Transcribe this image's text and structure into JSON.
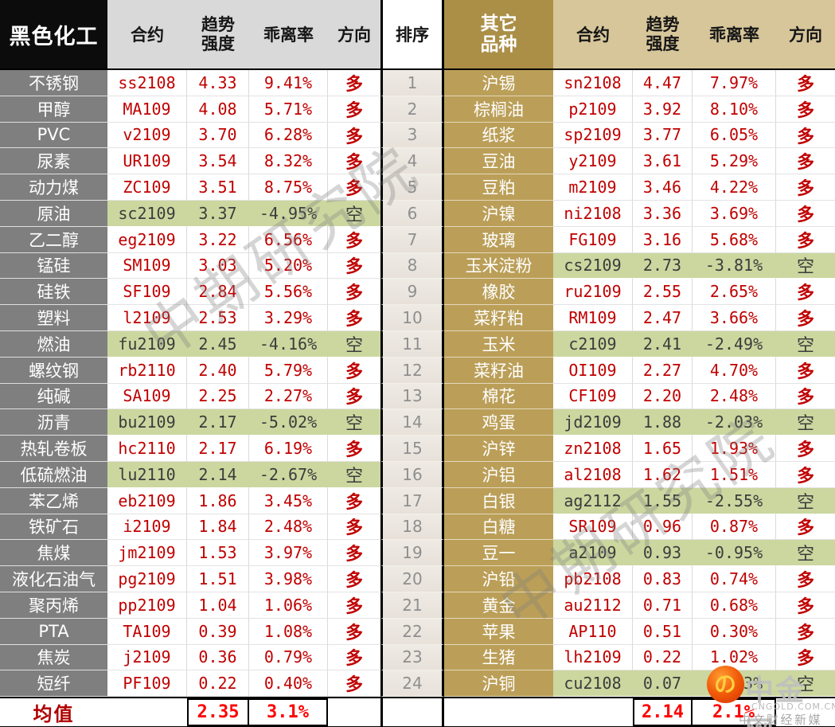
{
  "ui": {
    "left_title": "黑色化工",
    "right_title": "其它\n品种",
    "columns": {
      "contract": "合约",
      "strength": "趋势\n强度",
      "deviation": "乖离率",
      "direction": "方向"
    },
    "rank_column": {
      "header": "排序",
      "values": [
        1,
        2,
        3,
        4,
        5,
        6,
        7,
        8,
        9,
        10,
        11,
        12,
        13,
        14,
        15,
        16,
        17,
        18,
        19,
        20,
        21,
        22,
        23,
        24
      ]
    },
    "watermark": "中期研究院",
    "logo": {
      "title": "中金网",
      "domain": "CNGOLD.COM.CN",
      "tagline": "中文财经新媒体",
      "icon": "swirl-badge-icon"
    },
    "colors": {
      "left_sidebar": "#7f7f7f",
      "left_header_bg": "#0c0c0c",
      "column_header_gray": "#d9d9d9",
      "right_header_gold": "#ab8f47",
      "right_sidebar_gold": "#bb9f58",
      "right_column_header_tan": "#d7c69a",
      "short_row_green": "#cbd79f",
      "value_red": "#c00000",
      "average_red": "#fe0000",
      "rank_bg": "#ebe5df"
    },
    "direction_legend": {
      "long": "多",
      "short": "空"
    }
  },
  "chart_data": [
    {
      "type": "table",
      "title": "黑色化工",
      "columns": [
        "品种",
        "合约",
        "趋势强度",
        "乖离率",
        "方向"
      ],
      "rows": [
        {
          "variety": "不锈钢",
          "contract": "ss2108",
          "strength": "4.33",
          "deviation": "9.41%",
          "direction": "多",
          "short": false
        },
        {
          "variety": "甲醇",
          "contract": "MA109",
          "strength": "4.08",
          "deviation": "5.71%",
          "direction": "多",
          "short": false
        },
        {
          "variety": "PVC",
          "contract": "v2109",
          "strength": "3.70",
          "deviation": "6.28%",
          "direction": "多",
          "short": false
        },
        {
          "variety": "尿素",
          "contract": "UR109",
          "strength": "3.54",
          "deviation": "8.32%",
          "direction": "多",
          "short": false
        },
        {
          "variety": "动力煤",
          "contract": "ZC109",
          "strength": "3.51",
          "deviation": "8.75%",
          "direction": "多",
          "short": false
        },
        {
          "variety": "原油",
          "contract": "sc2109",
          "strength": "3.37",
          "deviation": "-4.95%",
          "direction": "空",
          "short": true
        },
        {
          "variety": "乙二醇",
          "contract": "eg2109",
          "strength": "3.22",
          "deviation": "6.56%",
          "direction": "多",
          "short": false
        },
        {
          "variety": "锰硅",
          "contract": "SM109",
          "strength": "3.03",
          "deviation": "5.20%",
          "direction": "多",
          "short": false
        },
        {
          "variety": "硅铁",
          "contract": "SF109",
          "strength": "2.84",
          "deviation": "5.56%",
          "direction": "多",
          "short": false
        },
        {
          "variety": "塑料",
          "contract": "l2109",
          "strength": "2.53",
          "deviation": "3.29%",
          "direction": "多",
          "short": false
        },
        {
          "variety": "燃油",
          "contract": "fu2109",
          "strength": "2.45",
          "deviation": "-4.16%",
          "direction": "空",
          "short": true
        },
        {
          "variety": "螺纹钢",
          "contract": "rb2110",
          "strength": "2.40",
          "deviation": "5.79%",
          "direction": "多",
          "short": false
        },
        {
          "variety": "纯碱",
          "contract": "SA109",
          "strength": "2.25",
          "deviation": "2.27%",
          "direction": "多",
          "short": false
        },
        {
          "variety": "沥青",
          "contract": "bu2109",
          "strength": "2.17",
          "deviation": "-5.02%",
          "direction": "空",
          "short": true
        },
        {
          "variety": "热轧卷板",
          "contract": "hc2110",
          "strength": "2.17",
          "deviation": "6.19%",
          "direction": "多",
          "short": false
        },
        {
          "variety": "低硫燃油",
          "contract": "lu2110",
          "strength": "2.14",
          "deviation": "-2.67%",
          "direction": "空",
          "short": true
        },
        {
          "variety": "苯乙烯",
          "contract": "eb2109",
          "strength": "1.86",
          "deviation": "3.45%",
          "direction": "多",
          "short": false
        },
        {
          "variety": "铁矿石",
          "contract": "i2109",
          "strength": "1.84",
          "deviation": "2.48%",
          "direction": "多",
          "short": false
        },
        {
          "variety": "焦煤",
          "contract": "jm2109",
          "strength": "1.53",
          "deviation": "3.97%",
          "direction": "多",
          "short": false
        },
        {
          "variety": "液化石油气",
          "contract": "pg2109",
          "strength": "1.51",
          "deviation": "3.98%",
          "direction": "多",
          "short": false
        },
        {
          "variety": "聚丙烯",
          "contract": "pp2109",
          "strength": "1.04",
          "deviation": "1.06%",
          "direction": "多",
          "short": false
        },
        {
          "variety": "PTA",
          "contract": "TA109",
          "strength": "0.39",
          "deviation": "1.08%",
          "direction": "多",
          "short": false
        },
        {
          "variety": "焦炭",
          "contract": "j2109",
          "strength": "0.36",
          "deviation": "0.79%",
          "direction": "多",
          "short": false
        },
        {
          "variety": "短纤",
          "contract": "PF109",
          "strength": "0.22",
          "deviation": "0.40%",
          "direction": "多",
          "short": false
        }
      ],
      "average": {
        "label": "均值",
        "strength": "2.35",
        "deviation": "3.1%"
      }
    },
    {
      "type": "table",
      "title": "其它品种",
      "columns": [
        "品种",
        "合约",
        "趋势强度",
        "乖离率",
        "方向"
      ],
      "rows": [
        {
          "variety": "沪锡",
          "contract": "sn2108",
          "strength": "4.47",
          "deviation": "7.97%",
          "direction": "多",
          "short": false
        },
        {
          "variety": "棕榈油",
          "contract": "p2109",
          "strength": "3.92",
          "deviation": "8.10%",
          "direction": "多",
          "short": false
        },
        {
          "variety": "纸浆",
          "contract": "sp2109",
          "strength": "3.77",
          "deviation": "6.05%",
          "direction": "多",
          "short": false
        },
        {
          "variety": "豆油",
          "contract": "y2109",
          "strength": "3.61",
          "deviation": "5.29%",
          "direction": "多",
          "short": false
        },
        {
          "variety": "豆粕",
          "contract": "m2109",
          "strength": "3.46",
          "deviation": "4.22%",
          "direction": "多",
          "short": false
        },
        {
          "variety": "沪镍",
          "contract": "ni2108",
          "strength": "3.36",
          "deviation": "3.69%",
          "direction": "多",
          "short": false
        },
        {
          "variety": "玻璃",
          "contract": "FG109",
          "strength": "3.16",
          "deviation": "5.68%",
          "direction": "多",
          "short": false
        },
        {
          "variety": "玉米淀粉",
          "contract": "cs2109",
          "strength": "2.73",
          "deviation": "-3.81%",
          "direction": "空",
          "short": true
        },
        {
          "variety": "橡胶",
          "contract": "ru2109",
          "strength": "2.55",
          "deviation": "2.65%",
          "direction": "多",
          "short": false
        },
        {
          "variety": "菜籽粕",
          "contract": "RM109",
          "strength": "2.47",
          "deviation": "3.66%",
          "direction": "多",
          "short": false
        },
        {
          "variety": "玉米",
          "contract": "c2109",
          "strength": "2.41",
          "deviation": "-2.49%",
          "direction": "空",
          "short": true
        },
        {
          "variety": "菜籽油",
          "contract": "OI109",
          "strength": "2.27",
          "deviation": "4.70%",
          "direction": "多",
          "short": false
        },
        {
          "variety": "棉花",
          "contract": "CF109",
          "strength": "2.20",
          "deviation": "2.48%",
          "direction": "多",
          "short": false
        },
        {
          "variety": "鸡蛋",
          "contract": "jd2109",
          "strength": "1.88",
          "deviation": "-2.03%",
          "direction": "空",
          "short": true
        },
        {
          "variety": "沪锌",
          "contract": "zn2108",
          "strength": "1.65",
          "deviation": "1.93%",
          "direction": "多",
          "short": false
        },
        {
          "variety": "沪铝",
          "contract": "al2108",
          "strength": "1.62",
          "deviation": "1.51%",
          "direction": "多",
          "short": false
        },
        {
          "variety": "白银",
          "contract": "ag2112",
          "strength": "1.55",
          "deviation": "-2.55%",
          "direction": "空",
          "short": true
        },
        {
          "variety": "白糖",
          "contract": "SR109",
          "strength": "0.96",
          "deviation": "0.87%",
          "direction": "多",
          "short": false
        },
        {
          "variety": "豆一",
          "contract": "a2109",
          "strength": "0.93",
          "deviation": "-0.95%",
          "direction": "空",
          "short": true
        },
        {
          "variety": "沪铅",
          "contract": "pb2108",
          "strength": "0.83",
          "deviation": "0.74%",
          "direction": "多",
          "short": false
        },
        {
          "variety": "黄金",
          "contract": "au2112",
          "strength": "0.71",
          "deviation": "0.68%",
          "direction": "多",
          "short": false
        },
        {
          "variety": "苹果",
          "contract": "AP110",
          "strength": "0.51",
          "deviation": "0.30%",
          "direction": "多",
          "short": false
        },
        {
          "variety": "生猪",
          "contract": "lh2109",
          "strength": "0.22",
          "deviation": "1.02%",
          "direction": "多",
          "short": false
        },
        {
          "variety": "沪铜",
          "contract": "cu2108",
          "strength": "0.07",
          "deviation": "-0.33%",
          "direction": "空",
          "short": true
        }
      ],
      "average": {
        "label": "均值",
        "strength": "2.14",
        "deviation": "2.1%"
      }
    }
  ]
}
